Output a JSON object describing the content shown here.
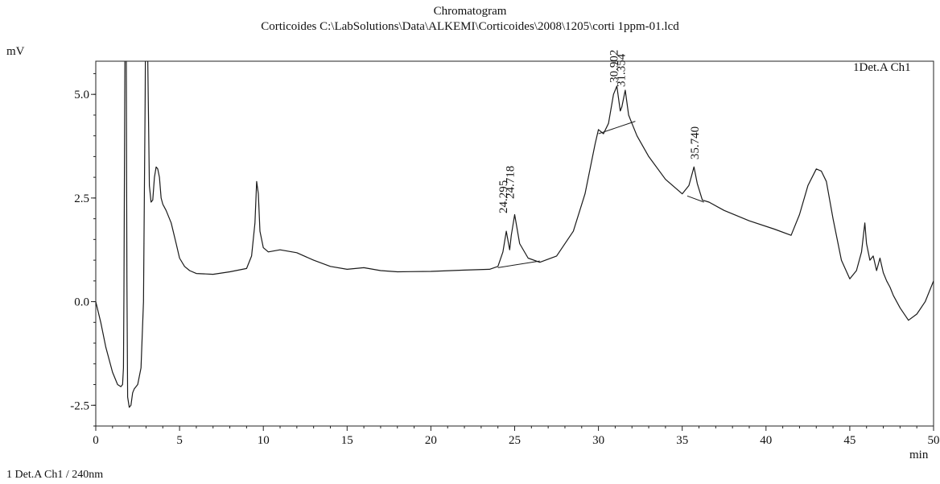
{
  "title": "Chromatogram",
  "subtitle": "Corticoides C:\\LabSolutions\\Data\\ALKEMI\\Corticoides\\2008\\1205\\corti 1ppm-01.lcd",
  "footer": "1 Det.A Ch1 / 240nm",
  "chart_data": {
    "type": "line",
    "title": "Chromatogram",
    "ylabel": "mV",
    "xlabel": "min",
    "xlim": [
      0,
      50
    ],
    "ylim": [
      -3.0,
      5.8
    ],
    "xticks": [
      0,
      5,
      10,
      15,
      20,
      25,
      30,
      35,
      40,
      45,
      50
    ],
    "yticks": [
      -2.5,
      0.0,
      2.5,
      5.0
    ],
    "ytick_labels": [
      "-2.5",
      "0.0",
      "2.5",
      "5.0"
    ],
    "grid": false,
    "legend": "top-right",
    "series": [
      {
        "name": "1Det.A Ch1",
        "x": [
          0,
          0.3,
          0.6,
          1.0,
          1.3,
          1.5,
          1.6,
          1.65,
          1.68,
          1.72,
          1.75,
          1.78,
          1.8,
          1.82,
          1.86,
          1.9,
          2.0,
          2.1,
          2.2,
          2.3,
          2.5,
          2.7,
          2.85,
          2.95,
          3.0,
          3.05,
          3.1,
          3.2,
          3.3,
          3.4,
          3.5,
          3.6,
          3.7,
          3.8,
          3.9,
          4.0,
          4.2,
          4.5,
          4.8,
          5.0,
          5.3,
          5.6,
          6.0,
          7.0,
          8.0,
          9.0,
          9.3,
          9.5,
          9.6,
          9.7,
          9.8,
          10.0,
          10.3,
          11.0,
          12.0,
          13.0,
          14.0,
          15.0,
          16.0,
          17.0,
          18.0,
          20.0,
          22.0,
          23.5,
          24.0,
          24.3,
          24.5,
          24.7,
          24.8,
          25.0,
          25.3,
          25.8,
          26.5,
          27.5,
          28.5,
          29.2,
          29.8,
          30.0,
          30.3,
          30.6,
          30.9,
          31.1,
          31.3,
          31.4,
          31.6,
          31.8,
          32.0,
          32.3,
          33.0,
          34.0,
          35.0,
          35.4,
          35.7,
          35.9,
          36.2,
          36.6,
          37.5,
          39.0,
          40.5,
          41.5,
          42.0,
          42.5,
          43.0,
          43.3,
          43.6,
          44.0,
          44.5,
          45.0,
          45.4,
          45.7,
          45.9,
          46.0,
          46.2,
          46.4,
          46.6,
          46.8,
          47.0,
          47.2,
          47.4,
          47.6,
          48.0,
          48.5,
          49.0,
          49.5,
          50.0
        ],
        "values": [
          0.0,
          -0.5,
          -1.1,
          -1.7,
          -2.0,
          -2.05,
          -2.0,
          -1.6,
          0.2,
          4.0,
          7.0,
          9.0,
          9.0,
          6.0,
          0.5,
          -2.3,
          -2.55,
          -2.5,
          -2.2,
          -2.1,
          -2.0,
          -1.6,
          0.0,
          5.0,
          9.0,
          9.0,
          6.0,
          2.8,
          2.4,
          2.45,
          3.0,
          3.25,
          3.2,
          3.0,
          2.5,
          2.35,
          2.2,
          1.9,
          1.4,
          1.05,
          0.85,
          0.75,
          0.68,
          0.66,
          0.72,
          0.8,
          1.1,
          1.9,
          2.9,
          2.6,
          1.7,
          1.3,
          1.2,
          1.25,
          1.18,
          1.0,
          0.85,
          0.78,
          0.82,
          0.75,
          0.72,
          0.73,
          0.76,
          0.78,
          0.85,
          1.2,
          1.7,
          1.25,
          1.6,
          2.1,
          1.4,
          1.05,
          0.95,
          1.1,
          1.7,
          2.6,
          3.8,
          4.15,
          4.05,
          4.3,
          5.0,
          5.2,
          4.6,
          4.7,
          5.1,
          4.5,
          4.3,
          4.0,
          3.5,
          2.95,
          2.6,
          2.8,
          3.25,
          2.85,
          2.45,
          2.4,
          2.2,
          1.95,
          1.75,
          1.6,
          2.1,
          2.8,
          3.2,
          3.15,
          2.9,
          2.0,
          1.0,
          0.55,
          0.75,
          1.2,
          1.9,
          1.4,
          1.0,
          1.1,
          0.75,
          1.05,
          0.7,
          0.5,
          0.35,
          0.15,
          -0.15,
          -0.45,
          -0.3,
          0.0,
          0.5
        ]
      }
    ],
    "baselines": [
      {
        "x": [
          24.0,
          26.5
        ],
        "y": [
          0.82,
          0.98
        ]
      },
      {
        "x": [
          30.0,
          32.2
        ],
        "y": [
          4.05,
          4.35
        ]
      },
      {
        "x": [
          35.3,
          36.3
        ],
        "y": [
          2.55,
          2.4
        ]
      }
    ],
    "peak_labels": [
      {
        "text": "24.295",
        "x": 24.3
      },
      {
        "text": "24.718",
        "x": 24.72
      },
      {
        "text": "30.902",
        "x": 30.9
      },
      {
        "text": "31.354",
        "x": 31.35
      },
      {
        "text": "35.740",
        "x": 35.74
      }
    ]
  }
}
